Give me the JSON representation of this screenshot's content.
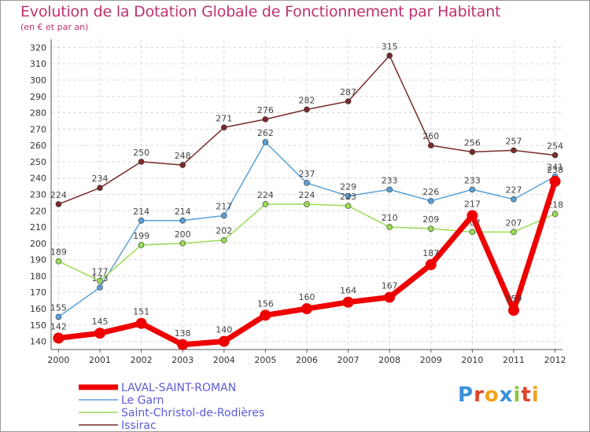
{
  "title": "Evolution de la Dotation Globale de Fonctionnement par Habitant",
  "subtitle": "(en € et par an)",
  "logo": {
    "letters": [
      "P",
      "r",
      "o",
      "x",
      "i",
      "t",
      "i"
    ],
    "colors": [
      "#3a8fd9",
      "#e0452b",
      "#f2a31b",
      "#3a8fd9",
      "#8cc63f",
      "#e0452b",
      "#f2a31b"
    ]
  },
  "chart_data": {
    "type": "line",
    "x": [
      "2000",
      "2001",
      "2002",
      "2003",
      "2004",
      "2005",
      "2006",
      "2007",
      "2008",
      "2009",
      "2010",
      "2011",
      "2012"
    ],
    "ylim": [
      135,
      325
    ],
    "yticks": [
      140,
      150,
      160,
      170,
      180,
      190,
      200,
      210,
      220,
      230,
      240,
      250,
      260,
      270,
      280,
      290,
      300,
      310,
      320
    ],
    "grid": true,
    "legend_position": "bottom-left",
    "series": [
      {
        "name": "Issirac",
        "color": "#7a2a2a",
        "values": [
          224,
          234,
          250,
          248,
          271,
          276,
          282,
          287,
          315,
          260,
          256,
          257,
          254
        ]
      },
      {
        "name": "Le Garn",
        "color": "#5aa0d8",
        "values": [
          155,
          173,
          214,
          214,
          217,
          262,
          237,
          229,
          233,
          226,
          233,
          227,
          241
        ]
      },
      {
        "name": "Saint-Christol-de-Rodières",
        "color": "#99dd55",
        "values": [
          189,
          177,
          199,
          200,
          202,
          224,
          224,
          223,
          210,
          209,
          207,
          207,
          218
        ]
      },
      {
        "name": "LAVAL-SAINT-ROMAN",
        "color": "#ee0000",
        "values": [
          142,
          145,
          151,
          138,
          140,
          156,
          160,
          164,
          167,
          187,
          217,
          159,
          238
        ]
      }
    ]
  },
  "legend": [
    {
      "name": "LAVAL-SAINT-ROMAN",
      "color": "#ee0000",
      "width": 7
    },
    {
      "name": "Le Garn",
      "color": "#5aa0d8",
      "width": 1.5
    },
    {
      "name": "Saint-Christol-de-Rodières",
      "color": "#99dd55",
      "width": 1.5
    },
    {
      "name": "Issirac",
      "color": "#7a2a2a",
      "width": 1.5
    }
  ]
}
